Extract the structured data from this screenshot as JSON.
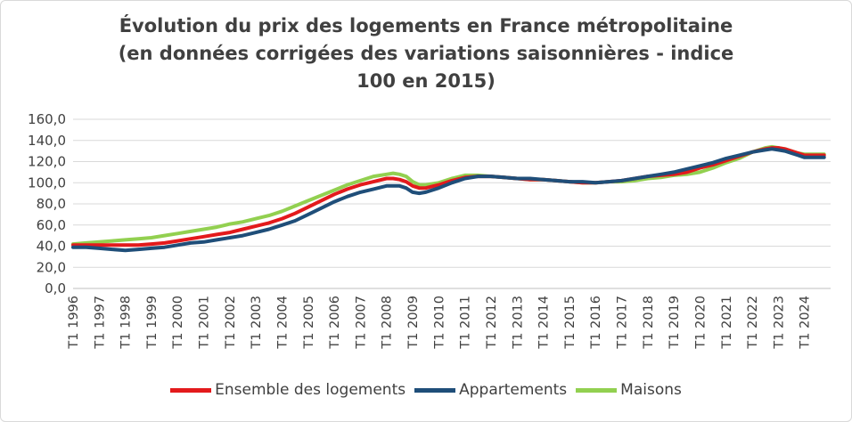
{
  "chart_data": {
    "type": "line",
    "title_lines": [
      "Évolution du prix des logements en France métropolitaine",
      "(en données corrigées des variations saisonnières - indice",
      "100 en 2015)"
    ],
    "ylim": [
      0,
      160
    ],
    "yticks": [
      "0,0",
      "20,0",
      "40,0",
      "60,0",
      "80,0",
      "100,0",
      "120,0",
      "140,0",
      "160,0"
    ],
    "grid": true,
    "legend_position": "bottom",
    "x_tick_labels": [
      "T1 1996",
      "T1 1997",
      "T1 1998",
      "T1 1999",
      "T1 2000",
      "T1 2001",
      "T1 2002",
      "T1 2003",
      "T1 2004",
      "T1 2005",
      "T1 2006",
      "T1 2007",
      "T1 2008",
      "T1 2009",
      "T1 2010",
      "T1 2011",
      "T1 2012",
      "T1 2013",
      "T1 2014",
      "T1 2015",
      "T1 2016",
      "T1 2017",
      "T1 2018",
      "T1 2019",
      "T1 2020",
      "T1 2021",
      "T1 2022",
      "T1 2023",
      "T1 2024"
    ],
    "x_points": [
      1996.0,
      1996.5,
      1997.0,
      1997.5,
      1998.0,
      1998.5,
      1999.0,
      1999.5,
      2000.0,
      2000.5,
      2001.0,
      2001.5,
      2002.0,
      2002.5,
      2003.0,
      2003.5,
      2004.0,
      2004.5,
      2005.0,
      2005.5,
      2006.0,
      2006.5,
      2007.0,
      2007.5,
      2008.0,
      2008.25,
      2008.5,
      2008.75,
      2009.0,
      2009.25,
      2009.5,
      2010.0,
      2010.5,
      2011.0,
      2011.5,
      2012.0,
      2012.5,
      2013.0,
      2013.5,
      2014.0,
      2014.5,
      2015.0,
      2015.5,
      2016.0,
      2016.5,
      2017.0,
      2017.5,
      2018.0,
      2018.5,
      2019.0,
      2019.5,
      2020.0,
      2020.5,
      2021.0,
      2021.5,
      2022.0,
      2022.5,
      2022.75,
      2023.0,
      2023.25,
      2023.5,
      2023.75,
      2024.0,
      2024.5,
      2024.75
    ],
    "series": [
      {
        "name": "Ensemble des logements",
        "color": "#e31a1c",
        "values": [
          41,
          41,
          41,
          41,
          41,
          41,
          42,
          43,
          45,
          47,
          49,
          51,
          53,
          56,
          59,
          62,
          66,
          71,
          77,
          83,
          89,
          94,
          98,
          101,
          104,
          104,
          103,
          101,
          97,
          95,
          95,
          98,
          102,
          105,
          106,
          106,
          105,
          104,
          103,
          103,
          102,
          101,
          100,
          100,
          101,
          102,
          104,
          106,
          107,
          108,
          110,
          114,
          117,
          121,
          125,
          129,
          132,
          133,
          133,
          132,
          130,
          128,
          126,
          126,
          126
        ]
      },
      {
        "name": "Appartements",
        "color": "#1f4e79",
        "values": [
          39,
          39,
          38,
          37,
          36,
          37,
          38,
          39,
          41,
          43,
          44,
          46,
          48,
          50,
          53,
          56,
          60,
          64,
          70,
          76,
          82,
          87,
          91,
          94,
          97,
          97,
          97,
          95,
          91,
          90,
          91,
          95,
          100,
          104,
          106,
          106,
          105,
          104,
          104,
          103,
          102,
          101,
          101,
          100,
          101,
          102,
          104,
          106,
          108,
          110,
          113,
          116,
          119,
          123,
          126,
          129,
          131,
          132,
          131,
          130,
          128,
          126,
          124,
          124,
          124
        ]
      },
      {
        "name": "Maisons",
        "color": "#92d050",
        "values": [
          42,
          43,
          44,
          45,
          46,
          47,
          48,
          50,
          52,
          54,
          56,
          58,
          61,
          63,
          66,
          69,
          73,
          78,
          83,
          88,
          93,
          98,
          102,
          106,
          108,
          109,
          108,
          106,
          101,
          98,
          98,
          100,
          104,
          107,
          107,
          106,
          105,
          104,
          103,
          103,
          102,
          101,
          100,
          100,
          101,
          101,
          102,
          104,
          105,
          107,
          108,
          110,
          114,
          119,
          123,
          129,
          133,
          134,
          133,
          132,
          130,
          128,
          127,
          127,
          127
        ]
      }
    ]
  }
}
